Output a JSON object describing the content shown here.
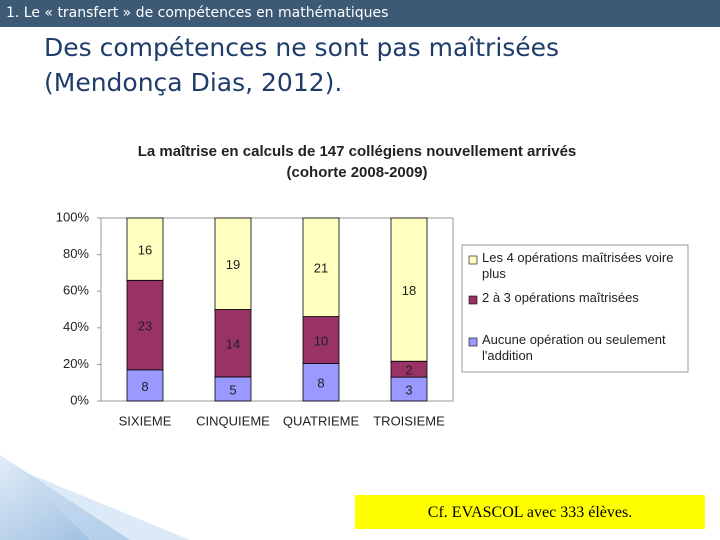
{
  "header": "1. Le « transfert » de compétences en mathématiques",
  "slide_title": [
    "Des compétences ne sont pas maîtrisées",
    "(Mendonça Dias, 2012)."
  ],
  "note": "Cf. EVASCOL avec 333 élèves.",
  "chart_data": {
    "type": "bar",
    "stacking": "percent",
    "title": [
      "La maîtrise en calculs de 147 collégiens nouvellement arrivés",
      "(cohorte 2008-2009)"
    ],
    "categories": [
      "SIXIEME",
      "CINQUIEME",
      "QUATRIEME",
      "TROISIEME"
    ],
    "series": [
      {
        "name": "Aucune opération ou seulement l'addition",
        "color": "#9999ff",
        "values": [
          8,
          5,
          8,
          3
        ]
      },
      {
        "name": "2 à 3 opérations maîtrisées",
        "color": "#993366",
        "values": [
          23,
          14,
          10,
          2
        ]
      },
      {
        "name": "Les 4 opérations maîtrisées voire plus",
        "color": "#ffffc0",
        "values": [
          16,
          19,
          21,
          18
        ]
      }
    ],
    "ylim": [
      0,
      100
    ],
    "yticks": [
      {
        "value": 0,
        "label": "0%"
      },
      {
        "value": 20,
        "label": "20%"
      },
      {
        "value": 40,
        "label": "40%"
      },
      {
        "value": 60,
        "label": "60%"
      },
      {
        "value": 80,
        "label": "80%"
      },
      {
        "value": 100,
        "label": "100%"
      }
    ],
    "legend": "right"
  }
}
